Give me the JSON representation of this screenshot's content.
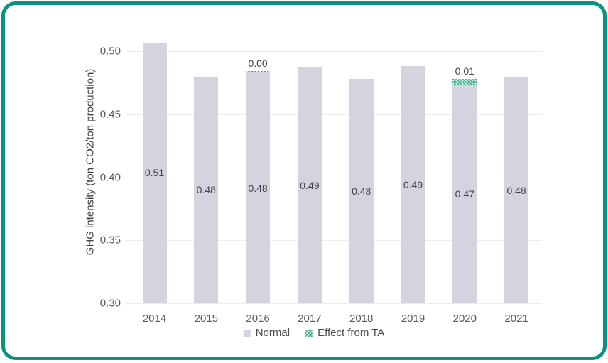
{
  "chart_data": {
    "type": "bar",
    "stacked": true,
    "title": "",
    "categories": [
      "2014",
      "2015",
      "2016",
      "2017",
      "2018",
      "2019",
      "2020",
      "2021"
    ],
    "series": [
      {
        "name": "Normal",
        "color": "#d6d3de",
        "pattern": "solid",
        "values": [
          0.507,
          0.48,
          0.483,
          0.487,
          0.478,
          0.488,
          0.473,
          0.479
        ],
        "labels": [
          "0.51",
          "0.48",
          "0.48",
          "0.49",
          "0.48",
          "0.49",
          "0.47",
          "0.48"
        ]
      },
      {
        "name": "Effect from TA",
        "color": "#3fae8e",
        "pattern": "crosshatch",
        "values": [
          0,
          0,
          0.001,
          0,
          0,
          0,
          0.005,
          0
        ],
        "labels": [
          "",
          "",
          "0.00",
          "",
          "",
          "",
          "0.01",
          ""
        ]
      }
    ],
    "xlabel": "",
    "ylabel": "GHG intensity (ton CO2/ton production)",
    "ylim": [
      0.3,
      0.5
    ],
    "yticks": [
      "0.30",
      "0.35",
      "0.40",
      "0.45",
      "0.50"
    ],
    "grid": "horizontal",
    "legend_position": "bottom"
  },
  "frame": {
    "border_color": "#0b9180"
  },
  "palette": {
    "background": "#ffffff",
    "grid": "#ececec",
    "tick_text": "#595959",
    "data_label_text": "#404040",
    "legend_text": "#4a4a4a"
  }
}
